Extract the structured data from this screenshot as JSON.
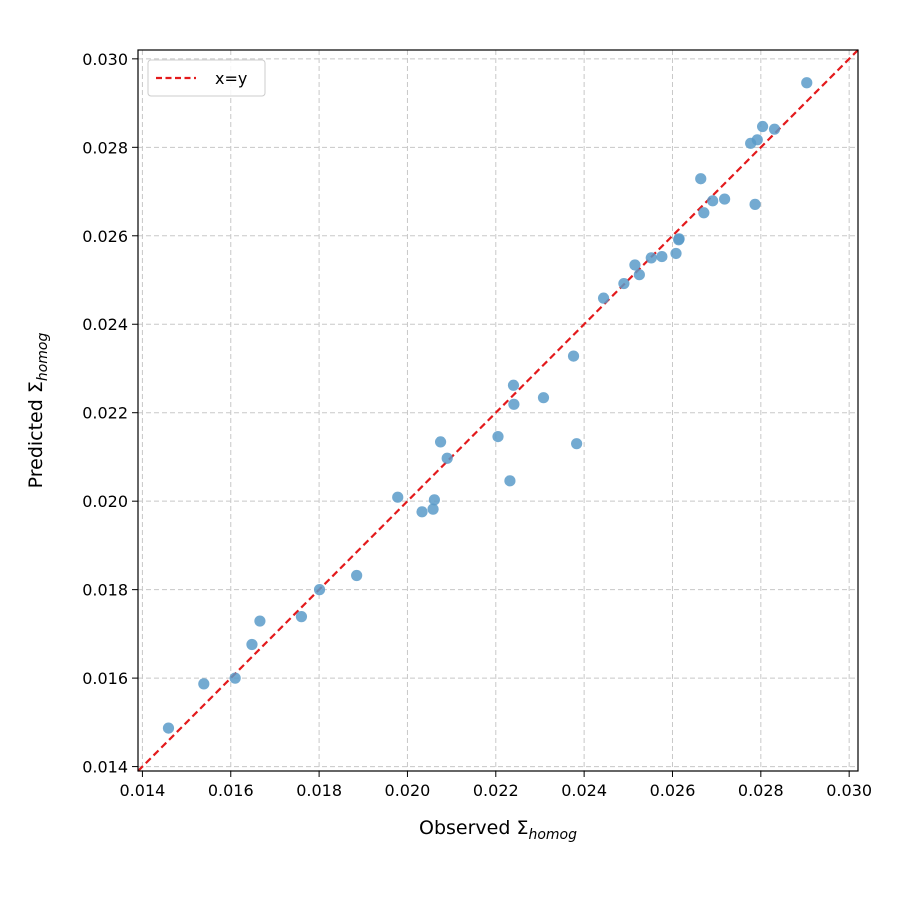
{
  "chart_data": {
    "type": "scatter",
    "xlabel": {
      "base": "Observed Σ",
      "subscript": "homog"
    },
    "ylabel": {
      "base": "Predicted Σ",
      "subscript": "homog"
    },
    "xlim": [
      0.0139,
      0.0302
    ],
    "ylim": [
      0.0139,
      0.0302
    ],
    "xticks": [
      "0.014",
      "0.016",
      "0.018",
      "0.020",
      "0.022",
      "0.024",
      "0.026",
      "0.028",
      "0.030"
    ],
    "yticks": [
      "0.014",
      "0.016",
      "0.018",
      "0.020",
      "0.022",
      "0.024",
      "0.026",
      "0.028",
      "0.030"
    ],
    "tick_values": [
      0.014,
      0.016,
      0.018,
      0.02,
      0.022,
      0.024,
      0.026,
      0.028,
      0.03
    ],
    "grid": true,
    "legend": {
      "position": "top-left",
      "entries": [
        {
          "label": "x=y",
          "color": "#e31a1c",
          "style": "dashed"
        }
      ]
    },
    "reference_line": {
      "label": "x=y",
      "color": "#e31a1c"
    },
    "point_color": "#5b9bc9",
    "points": [
      [
        0.01459,
        0.01487
      ],
      [
        0.01539,
        0.01587
      ],
      [
        0.0161,
        0.016
      ],
      [
        0.01648,
        0.01676
      ],
      [
        0.01666,
        0.01729
      ],
      [
        0.0176,
        0.01739
      ],
      [
        0.01801,
        0.018
      ],
      [
        0.01885,
        0.01832
      ],
      [
        0.01978,
        0.02009
      ],
      [
        0.02033,
        0.01976
      ],
      [
        0.02058,
        0.01982
      ],
      [
        0.02061,
        0.02003
      ],
      [
        0.02075,
        0.02134
      ],
      [
        0.0209,
        0.02097
      ],
      [
        0.02205,
        0.02146
      ],
      [
        0.02232,
        0.02046
      ],
      [
        0.0224,
        0.02262
      ],
      [
        0.02241,
        0.02219
      ],
      [
        0.02308,
        0.02234
      ],
      [
        0.02376,
        0.02328
      ],
      [
        0.02383,
        0.0213
      ],
      [
        0.02444,
        0.02459
      ],
      [
        0.0249,
        0.02492
      ],
      [
        0.02515,
        0.02534
      ],
      [
        0.02525,
        0.02512
      ],
      [
        0.02552,
        0.0255
      ],
      [
        0.02576,
        0.02553
      ],
      [
        0.02608,
        0.0256
      ],
      [
        0.02614,
        0.02591
      ],
      [
        0.02615,
        0.02593
      ],
      [
        0.02664,
        0.02729
      ],
      [
        0.02671,
        0.02652
      ],
      [
        0.02691,
        0.02679
      ],
      [
        0.02718,
        0.02683
      ],
      [
        0.02777,
        0.02809
      ],
      [
        0.02787,
        0.02671
      ],
      [
        0.02792,
        0.02817
      ],
      [
        0.02804,
        0.02847
      ],
      [
        0.02831,
        0.02841
      ],
      [
        0.02904,
        0.02946
      ]
    ]
  }
}
